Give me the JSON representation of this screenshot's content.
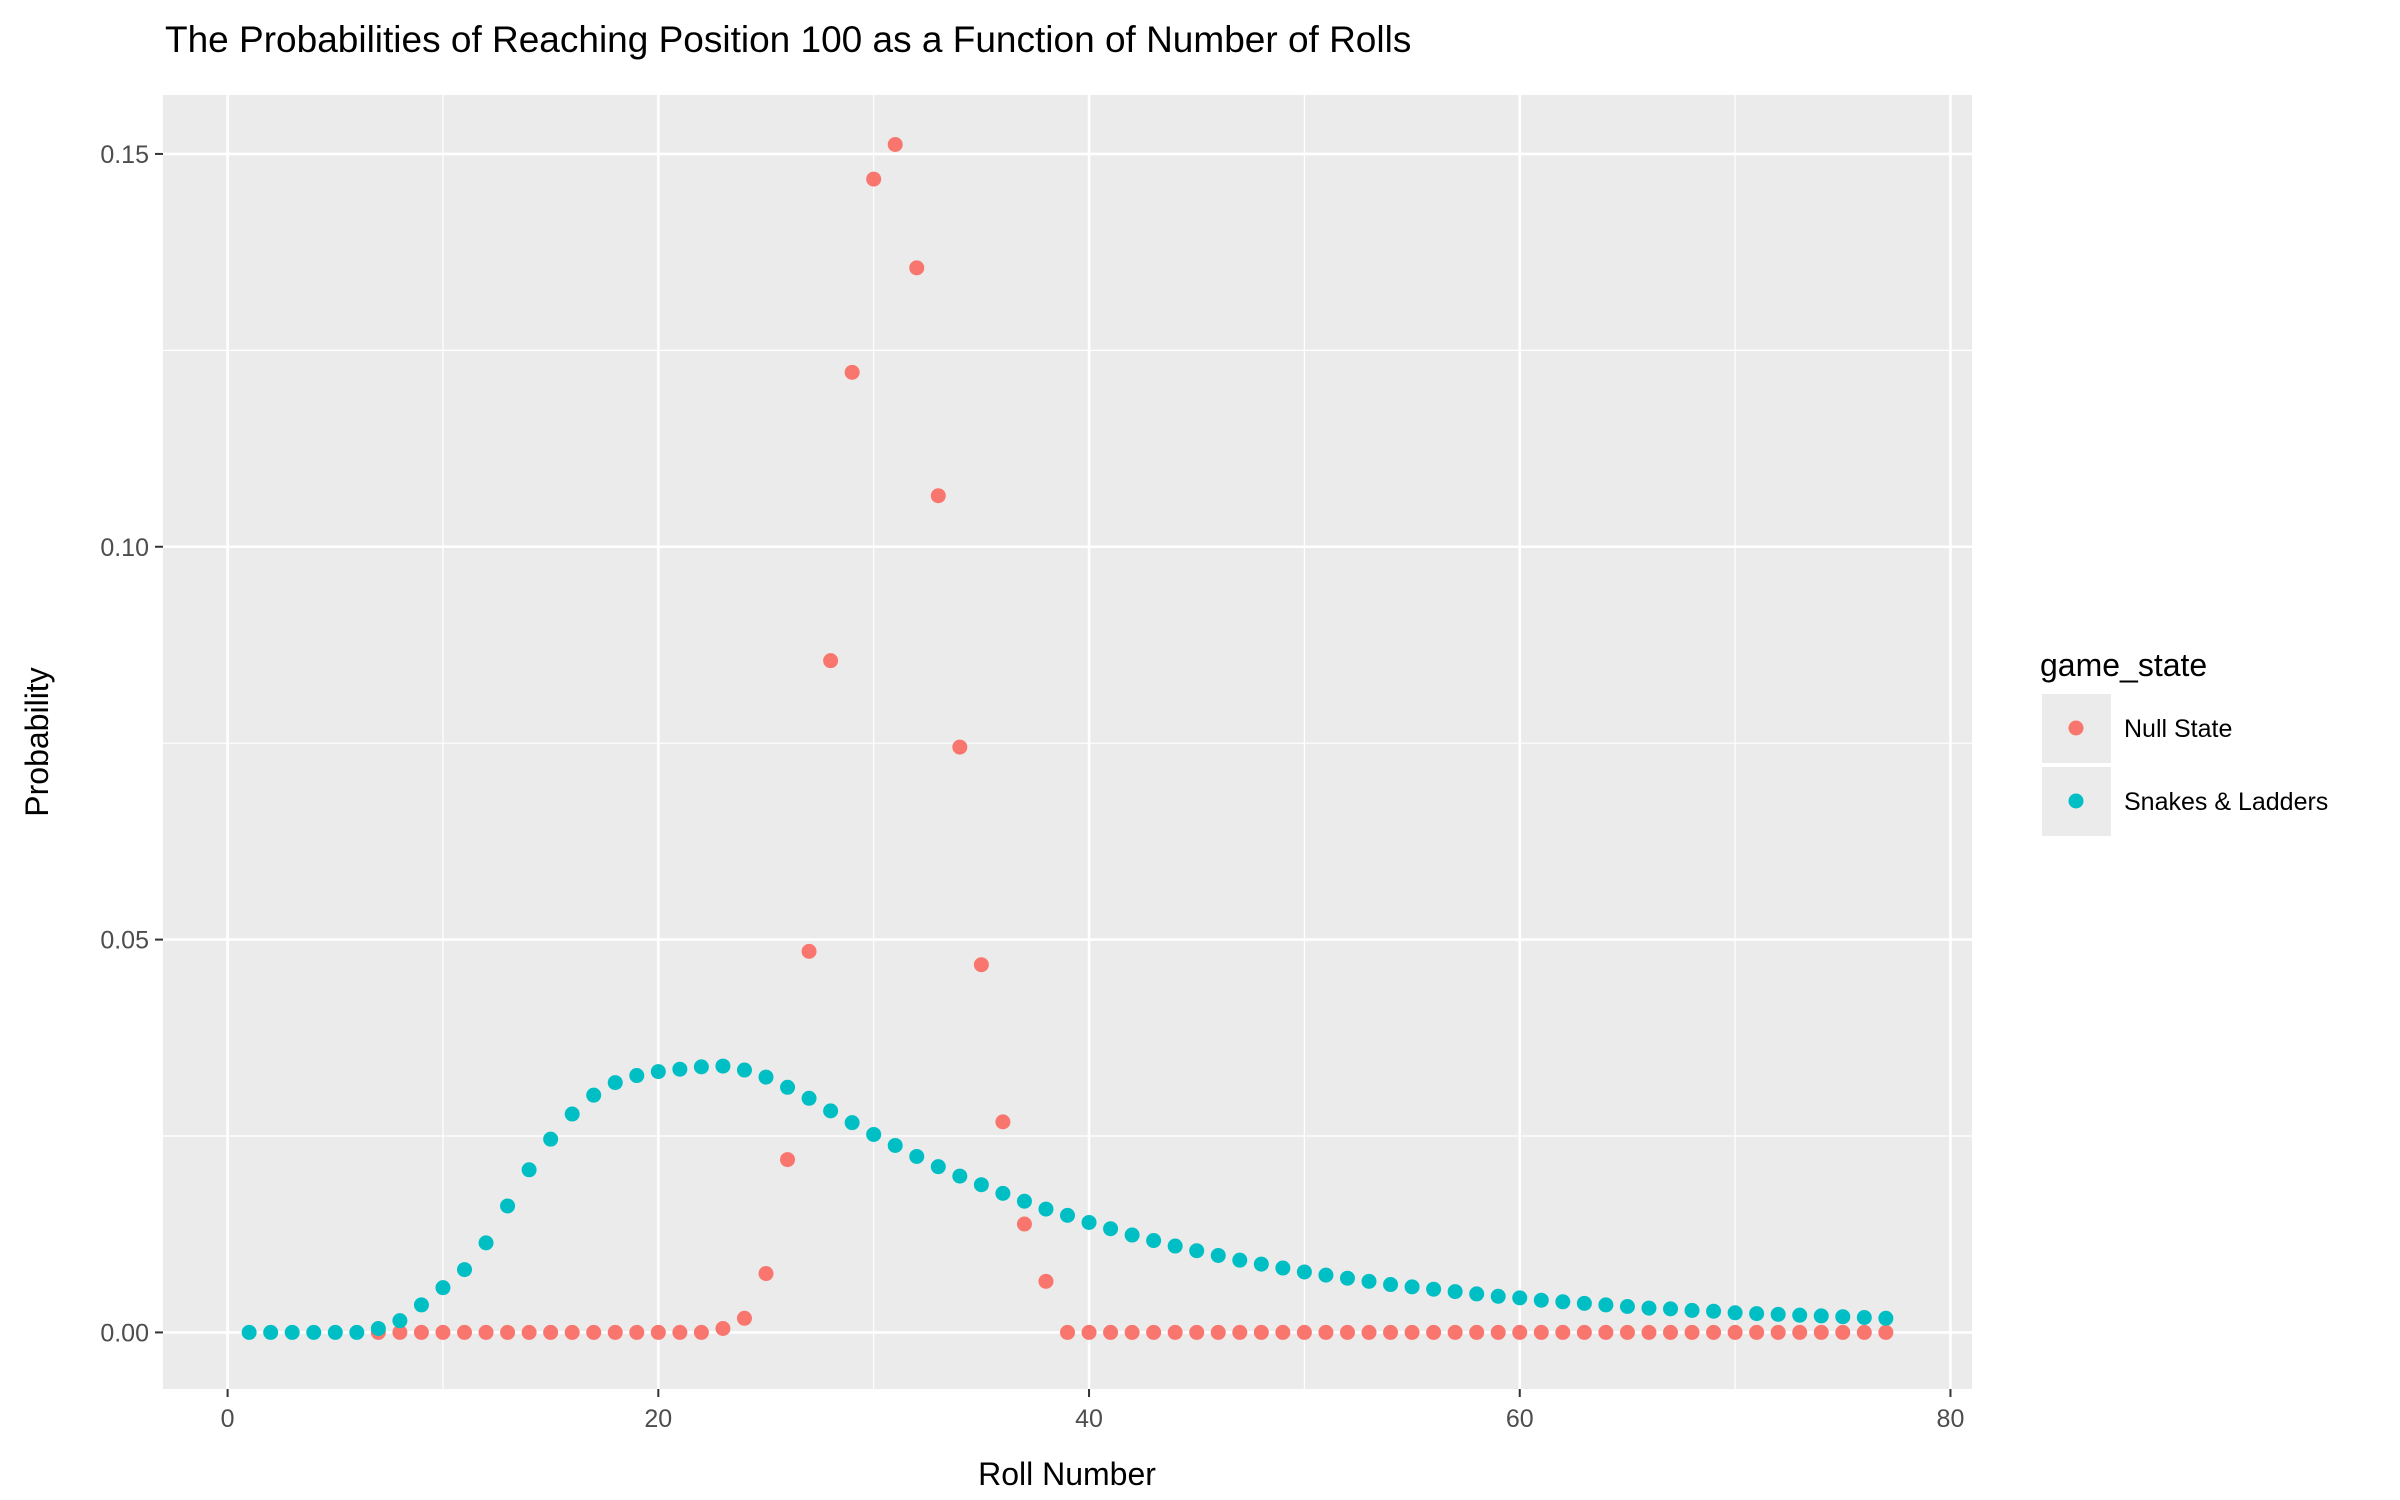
{
  "chart_data": {
    "type": "scatter",
    "title": "The Probabilities of Reaching Position 100 as a Function of Number of Rolls",
    "xlabel": "Roll Number",
    "ylabel": "Probability",
    "xlim": [
      -3,
      81
    ],
    "ylim": [
      -0.0072,
      0.1575
    ],
    "xticks": [
      0,
      20,
      40,
      60,
      80
    ],
    "xtick_labels": [
      "0",
      "20",
      "40",
      "60",
      "80"
    ],
    "yticks": [
      0.0,
      0.05,
      0.1,
      0.15
    ],
    "ytick_labels": [
      "0.00",
      "0.05",
      "0.10",
      "0.15"
    ],
    "grid": true,
    "legend": {
      "title": "game_state",
      "placement": "right"
    },
    "series": [
      {
        "name": "Null State",
        "color": "#F8766D",
        "x_start": 7,
        "values": [
          0,
          0,
          0,
          0,
          0,
          0,
          0,
          0,
          0,
          0,
          0,
          0,
          0,
          0,
          0,
          0,
          0.0005,
          0.0018,
          0.0075,
          0.022,
          0.0485,
          0.0855,
          0.1222,
          0.1468,
          0.1512,
          0.1355,
          0.1065,
          0.0745,
          0.0468,
          0.0268,
          0.0138,
          0.0065,
          0,
          0,
          0,
          0,
          0,
          0,
          0,
          0,
          0,
          0,
          0,
          0,
          0,
          0,
          0,
          0,
          0,
          0,
          0,
          0,
          0,
          0,
          0,
          0,
          0,
          0,
          0,
          0,
          0,
          0,
          0,
          0,
          0,
          0,
          0,
          0,
          0,
          0,
          0
        ]
      },
      {
        "name": "Snakes & Ladders",
        "color": "#00BFC4",
        "x_start": 1,
        "values": [
          0,
          0,
          0,
          0,
          0,
          0,
          0.0005,
          0.0015,
          0.0035,
          0.0057,
          0.008,
          0.0114,
          0.0161,
          0.0207,
          0.0246,
          0.0278,
          0.0302,
          0.0318,
          0.0327,
          0.0332,
          0.0335,
          0.0338,
          0.0339,
          0.0334,
          0.0325,
          0.0312,
          0.0298,
          0.0282,
          0.0267,
          0.0252,
          0.0238,
          0.0224,
          0.0211,
          0.0199,
          0.0188,
          0.0177,
          0.0167,
          0.0157,
          0.0149,
          0.014,
          0.0132,
          0.0124,
          0.0117,
          0.011,
          0.0104,
          0.0098,
          0.0092,
          0.0087,
          0.0082,
          0.0077,
          0.0073,
          0.0069,
          0.0065,
          0.0061,
          0.0058,
          0.0055,
          0.0052,
          0.0049,
          0.0046,
          0.0044,
          0.0041,
          0.0039,
          0.0037,
          0.0035,
          0.0033,
          0.0031,
          0.003,
          0.0028,
          0.0027,
          0.0025,
          0.0024,
          0.0023,
          0.0022,
          0.0021,
          0.002,
          0.0019,
          0.0018
        ]
      }
    ]
  }
}
